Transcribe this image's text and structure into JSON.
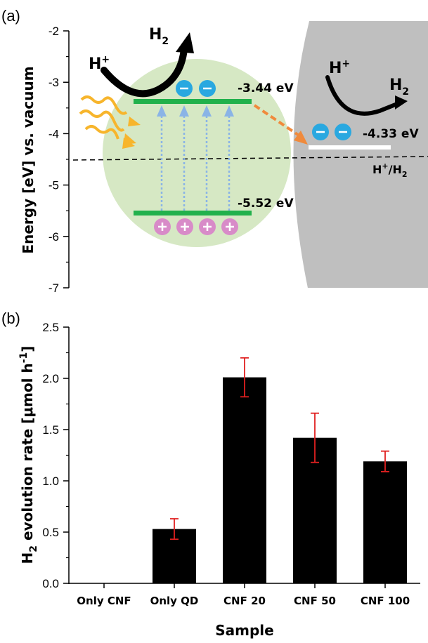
{
  "panel_a": {
    "label": "(a)",
    "y_axis_title": "Energy [eV] vs. vacuum",
    "y_ticks": [
      "-2",
      "-3",
      "-4",
      "-5",
      "-6",
      "-7"
    ],
    "cb_label": "-3.44 eV",
    "vb_label": "-5.52 eV",
    "cnf_label": "-4.33 eV",
    "hplus_left": "H",
    "h2_left": "H",
    "hplus_right": "H",
    "h2_right": "H",
    "plus_sup": "+",
    "two_sub": "2",
    "redox_label": "H",
    "redox_mid": "/H",
    "colors": {
      "qd_circle": "#d6e8c4",
      "band": "#22b14c",
      "cnf_region": "#bfbfbf",
      "electron": "#29a8e0",
      "hole": "#d88bc8",
      "light": "#f7b52c",
      "transfer_arrow": "#f08a3c",
      "excitation_arrow": "#8ab4e6"
    }
  },
  "panel_b": {
    "label": "(b)",
    "y_axis_title_main": "H",
    "y_axis_title_sub": "2",
    "y_axis_title_rest": " evolution rate [μmol h",
    "y_axis_title_sup": "-1",
    "y_axis_title_end": "]",
    "x_axis_title": "Sample",
    "error_color": "#e02020",
    "bar_color": "#000000"
  },
  "chart_data": {
    "type": "bar",
    "categories": [
      "Only CNF",
      "Only QD",
      "CNF 20",
      "CNF 50",
      "CNF 100"
    ],
    "values": [
      0,
      0.53,
      2.01,
      1.42,
      1.19
    ],
    "errors": [
      0,
      0.1,
      0.19,
      0.24,
      0.1
    ],
    "xlabel": "Sample",
    "ylabel": "H2 evolution rate [μmol h-1]",
    "ylim": [
      0,
      2.5
    ],
    "y_ticks": [
      "0.0",
      "0.5",
      "1.0",
      "1.5",
      "2.0",
      "2.5"
    ],
    "grid": false
  }
}
